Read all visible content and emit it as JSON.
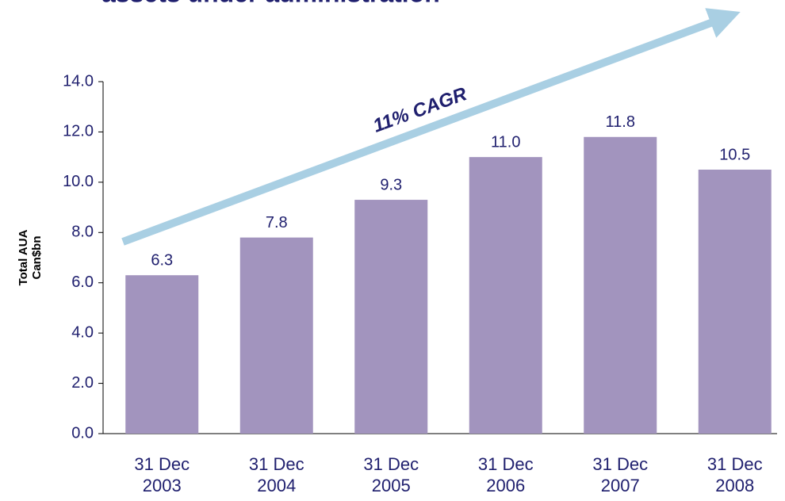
{
  "chart_data": {
    "type": "bar",
    "title": "assets under administration",
    "y_label": [
      "Total AUA",
      "Can$bn"
    ],
    "annotation": "11% CAGR",
    "categories": [
      "31 Dec 2003",
      "31 Dec 2004",
      "31 Dec 2005",
      "31 Dec 2006",
      "31 Dec 2007",
      "31 Dec 2008"
    ],
    "values": [
      6.3,
      7.8,
      9.3,
      11.0,
      11.8,
      10.5
    ],
    "value_labels": [
      "6.3",
      "7.8",
      "9.3",
      "11.0",
      "11.8",
      "10.5"
    ],
    "color": "#a294be",
    "ylim": [
      0,
      14
    ],
    "yticks": [
      {
        "value": 0,
        "label": "0.0"
      },
      {
        "value": 2,
        "label": "2.0"
      },
      {
        "value": 4,
        "label": "4.0"
      },
      {
        "value": 6,
        "label": "6.0"
      },
      {
        "value": 8,
        "label": "8.0"
      },
      {
        "value": 10,
        "label": "10.0"
      },
      {
        "value": 12,
        "label": "12.0"
      },
      {
        "value": 14,
        "label": "14.0"
      }
    ]
  }
}
